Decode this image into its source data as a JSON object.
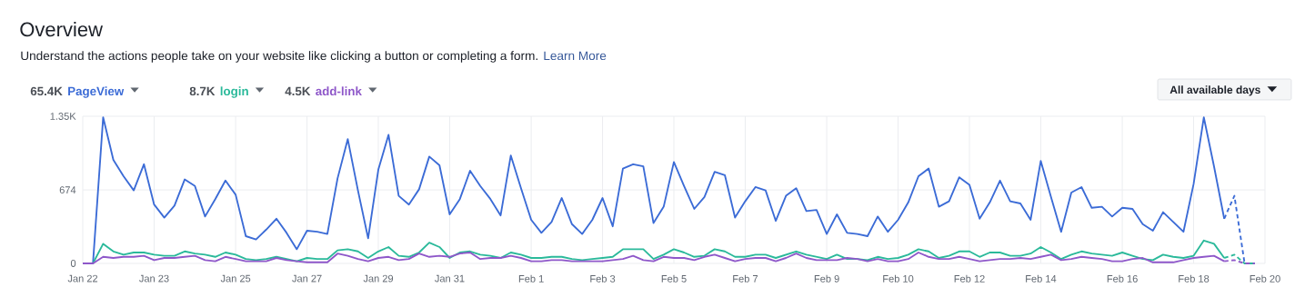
{
  "chart_data": {
    "type": "line",
    "title": "Overview",
    "subtitle": "Understand the actions people take on your website like clicking a button or completing a form.",
    "annotations": [
      "Learn More",
      "65.4K",
      "8.7K",
      "4.5K",
      "All available days"
    ],
    "categories": [
      "Jan 22",
      null,
      null,
      null,
      null,
      null,
      null,
      "Jan 23",
      null,
      null,
      null,
      null,
      null,
      null,
      null,
      "Jan 25",
      null,
      null,
      null,
      null,
      null,
      null,
      "Jan 27",
      null,
      null,
      null,
      null,
      null,
      null,
      "Jan 29",
      null,
      null,
      null,
      null,
      null,
      null,
      "Jan 31",
      null,
      null,
      null,
      null,
      null,
      null,
      null,
      "Feb 1",
      null,
      null,
      null,
      null,
      null,
      null,
      "Feb 3",
      null,
      null,
      null,
      null,
      null,
      null,
      "Feb 5",
      null,
      null,
      null,
      null,
      null,
      null,
      "Feb 7",
      null,
      null,
      null,
      null,
      null,
      null,
      null,
      "Feb 9",
      null,
      null,
      null,
      null,
      null,
      null,
      "Feb 10",
      null,
      null,
      null,
      null,
      null,
      null,
      "Feb 12",
      null,
      null,
      null,
      null,
      null,
      null,
      "Feb 14",
      null,
      null,
      null,
      null,
      null,
      null,
      null,
      "Feb 16",
      null,
      null,
      null,
      null,
      null,
      null,
      "Feb 18",
      null,
      null,
      null,
      null,
      null,
      null,
      "Feb 20"
    ],
    "ylim": [
      0,
      1350
    ],
    "yticks": [
      0,
      674,
      {
        "value": 1350,
        "label": "1.35K"
      }
    ],
    "grid": true,
    "legend": "top left",
    "marker": "none",
    "line_style": "solid",
    "series": [
      {
        "name": "PageView",
        "color": "#3b6bd6",
        "values": [
          0,
          0,
          1340,
          950,
          800,
          670,
          910,
          540,
          420,
          530,
          770,
          710,
          430,
          590,
          760,
          630,
          250,
          220,
          310,
          410,
          280,
          130,
          300,
          290,
          270,
          780,
          1140,
          670,
          230,
          860,
          1180,
          620,
          540,
          680,
          980,
          900,
          450,
          590,
          850,
          710,
          590,
          440,
          990,
          690,
          400,
          280,
          380,
          600,
          360,
          270,
          400,
          600,
          340,
          870,
          910,
          890,
          370,
          520,
          930,
          710,
          500,
          610,
          840,
          810,
          420,
          570,
          700,
          670,
          390,
          620,
          690,
          480,
          490,
          270,
          450,
          280,
          270,
          250,
          430,
          290,
          400,
          560,
          800,
          870,
          520,
          570,
          790,
          720,
          410,
          560,
          760,
          570,
          550,
          400,
          940,
          610,
          290,
          650,
          700,
          510,
          520,
          430,
          510,
          500,
          360,
          300,
          470,
          380,
          290,
          730,
          1340,
          890,
          410,
          null,
          null,
          null,
          null
        ]
      },
      {
        "name": "login",
        "color": "#2ab99a",
        "values": [
          0,
          0,
          180,
          110,
          80,
          100,
          100,
          80,
          70,
          70,
          110,
          90,
          80,
          60,
          100,
          80,
          40,
          30,
          40,
          60,
          40,
          20,
          50,
          40,
          40,
          120,
          130,
          110,
          50,
          110,
          150,
          70,
          60,
          100,
          190,
          150,
          50,
          100,
          110,
          80,
          70,
          50,
          100,
          80,
          50,
          50,
          60,
          60,
          40,
          30,
          40,
          50,
          60,
          130,
          130,
          130,
          40,
          80,
          130,
          100,
          60,
          70,
          130,
          110,
          60,
          60,
          80,
          80,
          50,
          80,
          110,
          80,
          60,
          40,
          80,
          40,
          40,
          30,
          60,
          40,
          50,
          80,
          130,
          110,
          50,
          70,
          110,
          110,
          60,
          100,
          100,
          70,
          70,
          90,
          150,
          100,
          40,
          80,
          110,
          90,
          80,
          70,
          100,
          70,
          40,
          30,
          80,
          60,
          50,
          70,
          210,
          180,
          50,
          null,
          null,
          null,
          null
        ]
      },
      {
        "name": "add-link",
        "color": "#8e57c9",
        "values": [
          0,
          0,
          60,
          50,
          60,
          60,
          70,
          30,
          50,
          50,
          60,
          70,
          30,
          20,
          60,
          40,
          20,
          20,
          20,
          50,
          30,
          20,
          10,
          10,
          10,
          90,
          70,
          40,
          20,
          50,
          60,
          30,
          40,
          90,
          60,
          70,
          60,
          90,
          100,
          40,
          50,
          50,
          70,
          50,
          20,
          20,
          30,
          30,
          20,
          20,
          20,
          20,
          30,
          40,
          70,
          30,
          20,
          60,
          50,
          50,
          30,
          60,
          80,
          50,
          20,
          40,
          50,
          50,
          20,
          50,
          90,
          50,
          30,
          30,
          30,
          50,
          40,
          20,
          40,
          20,
          20,
          40,
          100,
          60,
          40,
          40,
          60,
          40,
          20,
          30,
          40,
          40,
          50,
          40,
          60,
          80,
          30,
          40,
          60,
          50,
          40,
          20,
          20,
          40,
          50,
          10,
          10,
          10,
          30,
          50,
          60,
          70,
          20,
          null,
          null,
          null,
          null
        ]
      },
      {
        "color": "#3b6bd6",
        "line_style": "dashed",
        "values": [
          null,
          null,
          null,
          null,
          null,
          null,
          null,
          null,
          null,
          null,
          null,
          null,
          null,
          null,
          null,
          null,
          null,
          null,
          null,
          null,
          null,
          null,
          null,
          null,
          null,
          null,
          null,
          null,
          null,
          null,
          null,
          null,
          null,
          null,
          null,
          null,
          null,
          null,
          null,
          null,
          null,
          null,
          null,
          null,
          null,
          null,
          null,
          null,
          null,
          null,
          null,
          null,
          null,
          null,
          null,
          null,
          null,
          null,
          null,
          null,
          null,
          null,
          null,
          null,
          null,
          null,
          null,
          null,
          null,
          null,
          null,
          null,
          null,
          null,
          null,
          null,
          null,
          null,
          null,
          null,
          null,
          null,
          null,
          null,
          null,
          null,
          null,
          null,
          null,
          null,
          null,
          null,
          null,
          null,
          null,
          null,
          null,
          null,
          null,
          null,
          null,
          null,
          null,
          null,
          null,
          null,
          null,
          null,
          null,
          null,
          null,
          null,
          410,
          620,
          0,
          0,
          null
        ]
      },
      {
        "color": "#2ab99a",
        "line_style": "dashed",
        "values": [
          null,
          null,
          null,
          null,
          null,
          null,
          null,
          null,
          null,
          null,
          null,
          null,
          null,
          null,
          null,
          null,
          null,
          null,
          null,
          null,
          null,
          null,
          null,
          null,
          null,
          null,
          null,
          null,
          null,
          null,
          null,
          null,
          null,
          null,
          null,
          null,
          null,
          null,
          null,
          null,
          null,
          null,
          null,
          null,
          null,
          null,
          null,
          null,
          null,
          null,
          null,
          null,
          null,
          null,
          null,
          null,
          null,
          null,
          null,
          null,
          null,
          null,
          null,
          null,
          null,
          null,
          null,
          null,
          null,
          null,
          null,
          null,
          null,
          null,
          null,
          null,
          null,
          null,
          null,
          null,
          null,
          null,
          null,
          null,
          null,
          null,
          null,
          null,
          null,
          null,
          null,
          null,
          null,
          null,
          null,
          null,
          null,
          null,
          null,
          null,
          null,
          null,
          null,
          null,
          null,
          null,
          null,
          null,
          null,
          null,
          null,
          null,
          50,
          80,
          0,
          0,
          null
        ]
      },
      {
        "color": "#8e57c9",
        "line_style": "dashed",
        "values": [
          null,
          null,
          null,
          null,
          null,
          null,
          null,
          null,
          null,
          null,
          null,
          null,
          null,
          null,
          null,
          null,
          null,
          null,
          null,
          null,
          null,
          null,
          null,
          null,
          null,
          null,
          null,
          null,
          null,
          null,
          null,
          null,
          null,
          null,
          null,
          null,
          null,
          null,
          null,
          null,
          null,
          null,
          null,
          null,
          null,
          null,
          null,
          null,
          null,
          null,
          null,
          null,
          null,
          null,
          null,
          null,
          null,
          null,
          null,
          null,
          null,
          null,
          null,
          null,
          null,
          null,
          null,
          null,
          null,
          null,
          null,
          null,
          null,
          null,
          null,
          null,
          null,
          null,
          null,
          null,
          null,
          null,
          null,
          null,
          null,
          null,
          null,
          null,
          null,
          null,
          null,
          null,
          null,
          null,
          null,
          null,
          null,
          null,
          null,
          null,
          null,
          null,
          null,
          null,
          null,
          null,
          null,
          null,
          null,
          null,
          null,
          null,
          20,
          30,
          0,
          0,
          null
        ]
      }
    ]
  }
}
